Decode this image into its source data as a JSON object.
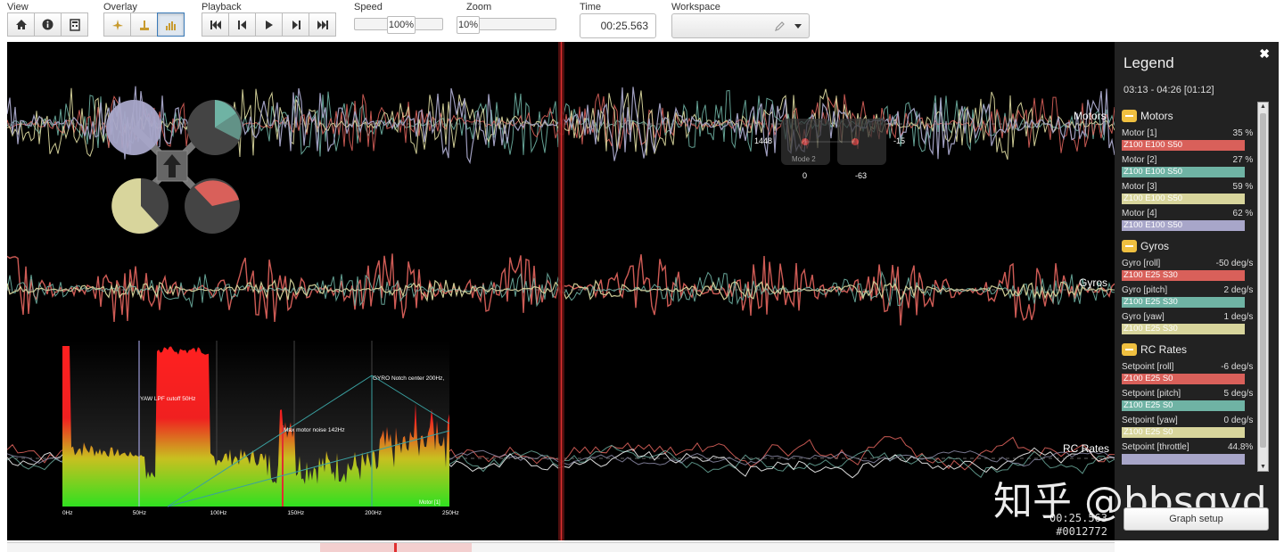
{
  "toolbar": {
    "view": {
      "label": "View"
    },
    "overlay": {
      "label": "Overlay"
    },
    "playback": {
      "label": "Playback"
    },
    "speed": {
      "label": "Speed",
      "value": "100%"
    },
    "zoom": {
      "label": "Zoom",
      "value": "10%"
    },
    "time": {
      "label": "Time",
      "value": "00:25.563"
    },
    "workspace": {
      "label": "Workspace",
      "value": ""
    }
  },
  "graph": {
    "labels": {
      "motors": "Motors",
      "gyros": "Gyros",
      "rc_rates": "RC Rates"
    },
    "stick_overlay": {
      "left_value": "1448",
      "right_value": "-15",
      "bottom_left": "0",
      "bottom_right": "-63",
      "tag": "Mode 2"
    },
    "spectrum": {
      "annotations": {
        "lpf": "YAW LPF cutoff 50Hz",
        "motor_noise": "Max motor noise 142Hz",
        "notch": "GYRO Notch center 200Hz,"
      },
      "xticks": [
        "0Hz",
        "50Hz",
        "100Hz",
        "150Hz",
        "200Hz",
        "250Hz"
      ],
      "field": "Motor [1]"
    },
    "time": "00:25.563",
    "frame": "#0012772"
  },
  "legend": {
    "title": "Legend",
    "range": "03:13 - 04:26 [01:12]",
    "groups": [
      {
        "name": "Motors",
        "fields": [
          {
            "label": "Motor [1]",
            "value": "35 %",
            "bar": "Z100 E100 S50",
            "color": "#d9605a"
          },
          {
            "label": "Motor [2]",
            "value": "27 %",
            "bar": "Z100 E100 S50",
            "color": "#6fb3a4"
          },
          {
            "label": "Motor [3]",
            "value": "59 %",
            "bar": "Z100 E100 S50",
            "color": "#d8d59c"
          },
          {
            "label": "Motor [4]",
            "value": "62 %",
            "bar": "Z100 E100 S50",
            "color": "#a8a6c9"
          }
        ]
      },
      {
        "name": "Gyros",
        "fields": [
          {
            "label": "Gyro [roll]",
            "value": "-50 deg/s",
            "bar": "Z100 E25 S30",
            "color": "#d9605a"
          },
          {
            "label": "Gyro [pitch]",
            "value": "2 deg/s",
            "bar": "Z100 E25 S30",
            "color": "#6fb3a4"
          },
          {
            "label": "Gyro [yaw]",
            "value": "1 deg/s",
            "bar": "Z100 E25 S30",
            "color": "#d8d59c"
          }
        ]
      },
      {
        "name": "RC Rates",
        "fields": [
          {
            "label": "Setpoint [roll]",
            "value": "-6 deg/s",
            "bar": "Z100 E25 S0",
            "color": "#d9605a"
          },
          {
            "label": "Setpoint [pitch]",
            "value": "5 deg/s",
            "bar": "Z100 E25 S0",
            "color": "#6fb3a4"
          },
          {
            "label": "Setpoint [yaw]",
            "value": "0 deg/s",
            "bar": "Z100 E25 S0",
            "color": "#d8d59c"
          },
          {
            "label": "Setpoint [throttle]",
            "value": "44.8%",
            "bar": "",
            "color": "#a8a6c9"
          }
        ]
      }
    ],
    "graph_setup": "Graph setup"
  },
  "watermark": "知乎 @bbsgyd"
}
